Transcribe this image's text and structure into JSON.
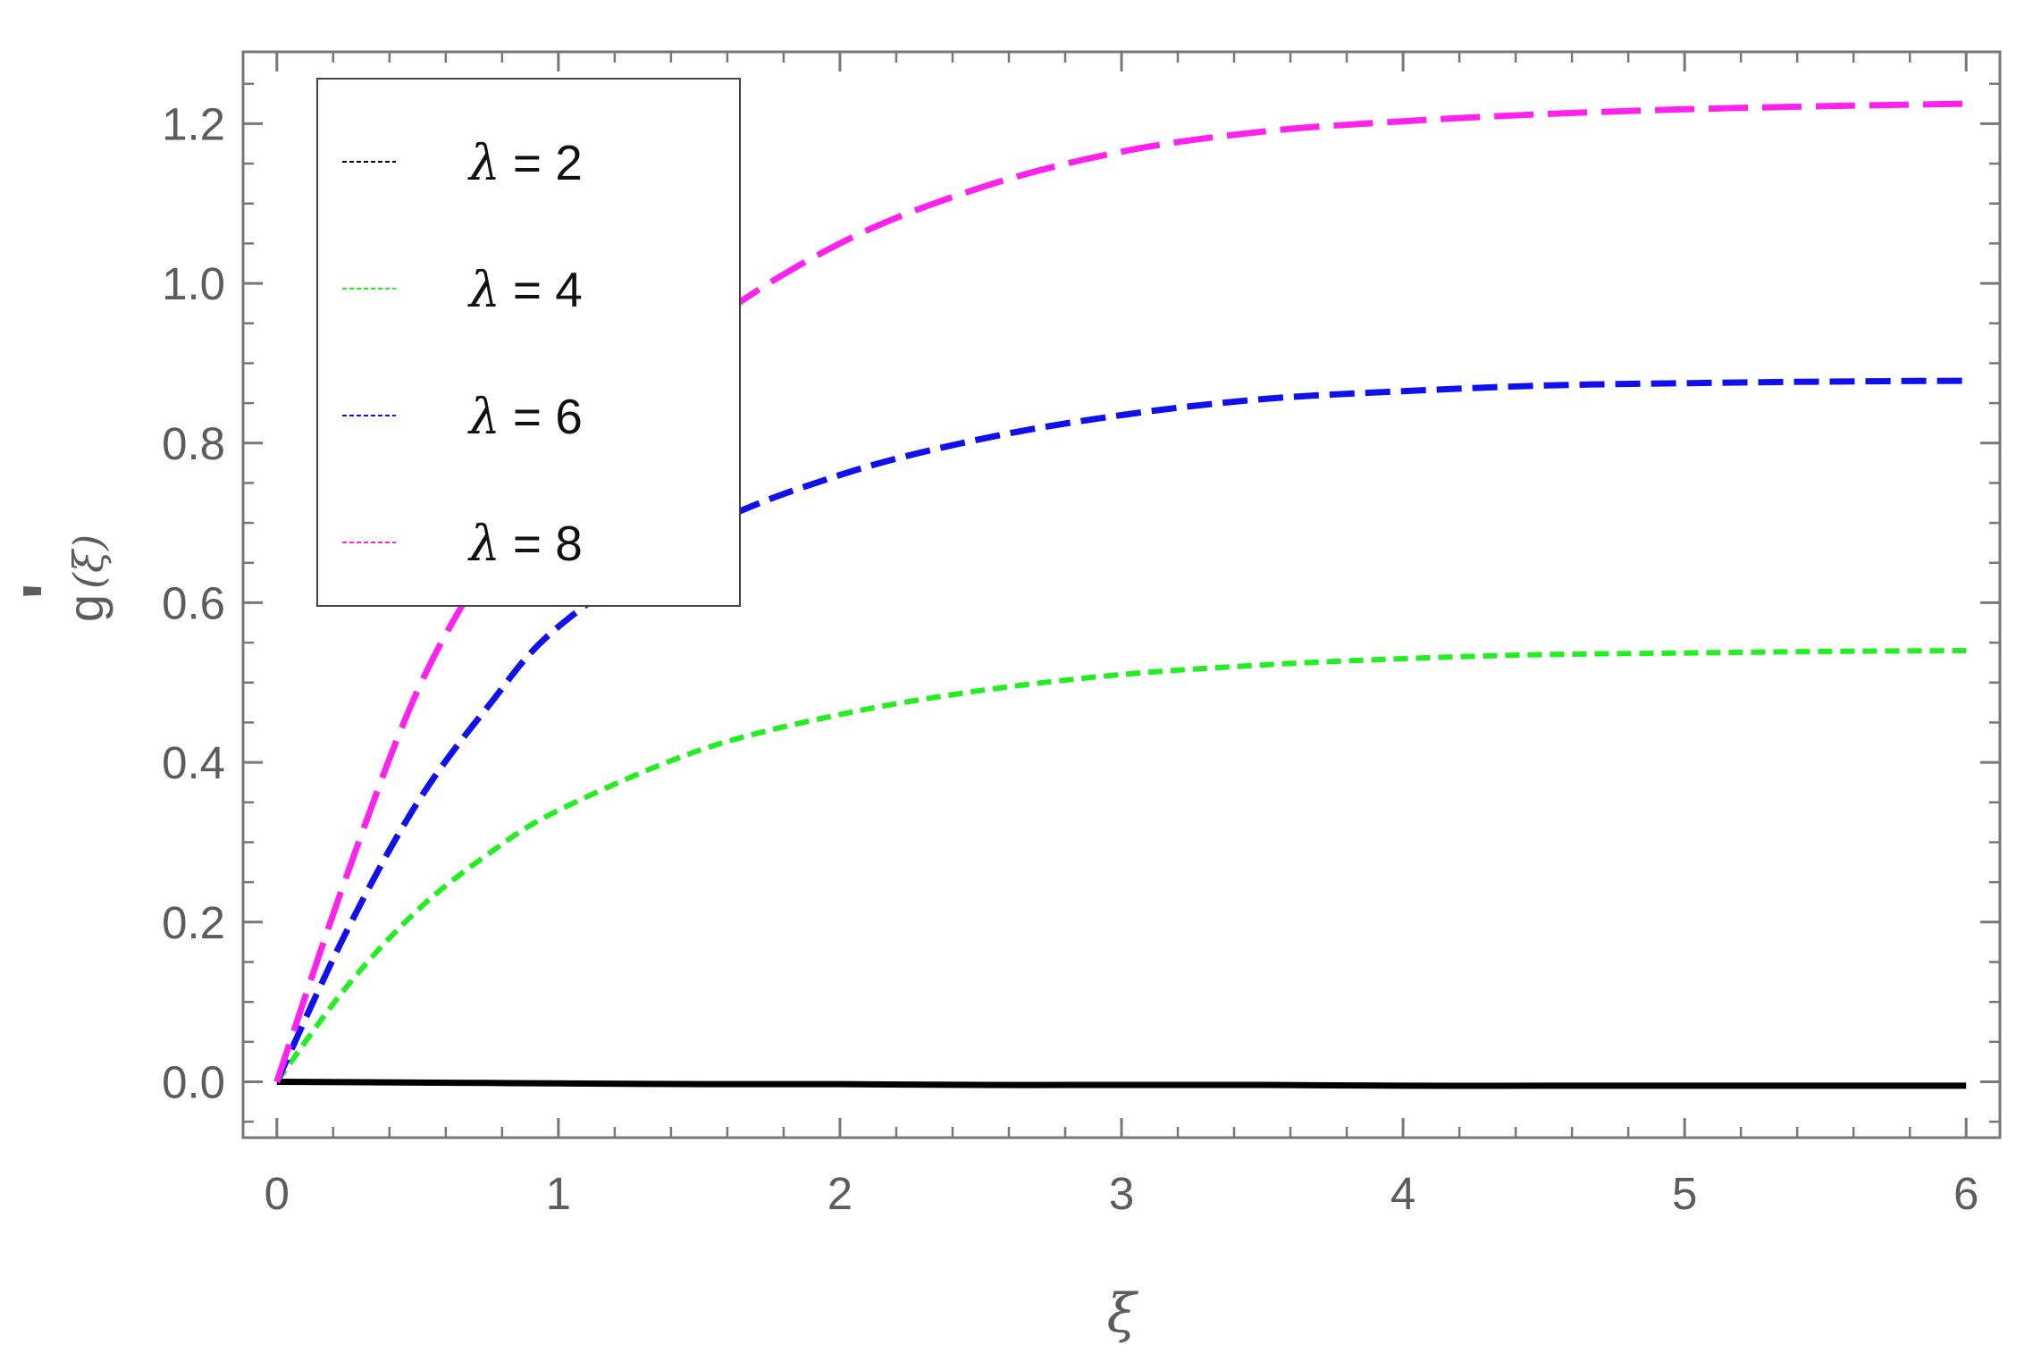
{
  "chart_data": {
    "type": "line",
    "title": "",
    "xlabel": "ξ",
    "ylabel_main": "g",
    "ylabel_prime": "'",
    "ylabel_arg": "(ξ)",
    "xlim": [
      -0.12,
      6.12
    ],
    "ylim": [
      -0.07,
      1.29
    ],
    "xticks": [
      0,
      1,
      2,
      3,
      4,
      5,
      6
    ],
    "xtick_labels": [
      "0",
      "1",
      "2",
      "3",
      "4",
      "5",
      "6"
    ],
    "yticks": [
      0.0,
      0.2,
      0.4,
      0.6,
      0.8,
      1.0,
      1.2
    ],
    "ytick_labels": [
      "0.0",
      "0.2",
      "0.4",
      "0.6",
      "0.8",
      "1.0",
      "1.2"
    ],
    "grid": false,
    "legend_position": "top-left",
    "x": [
      0,
      0.25,
      0.5,
      0.75,
      1.0,
      1.5,
      2.0,
      2.5,
      3.0,
      3.5,
      4.0,
      4.5,
      5.0,
      5.5,
      6.0
    ],
    "series": [
      {
        "name": "λ = 2",
        "legend_symbol": "λ",
        "legend_value": "= 2",
        "color": "#000000",
        "style": "solid",
        "values": [
          0,
          -0.0005,
          -0.001,
          -0.0015,
          -0.002,
          -0.003,
          -0.003,
          -0.004,
          -0.004,
          -0.004,
          -0.005,
          -0.005,
          -0.005,
          -0.005,
          -0.005
        ]
      },
      {
        "name": "λ = 4",
        "legend_symbol": "λ",
        "legend_value": "= 4",
        "color": "#22ee22",
        "style": "short-dash",
        "values": [
          0,
          0.12,
          0.215,
          0.285,
          0.34,
          0.415,
          0.46,
          0.49,
          0.51,
          0.522,
          0.53,
          0.535,
          0.537,
          0.539,
          0.54
        ]
      },
      {
        "name": "λ = 6",
        "legend_symbol": "λ",
        "legend_value": "= 6",
        "color": "#1010ee",
        "style": "medium-dash",
        "values": [
          0,
          0.19,
          0.35,
          0.47,
          0.57,
          0.69,
          0.76,
          0.805,
          0.835,
          0.855,
          0.865,
          0.872,
          0.875,
          0.877,
          0.878
        ]
      },
      {
        "name": "λ = 8",
        "legend_symbol": "λ",
        "legend_value": "= 8",
        "color": "#ff22ee",
        "style": "long-dash",
        "values": [
          0,
          0.26,
          0.49,
          0.65,
          0.78,
          0.94,
          1.05,
          1.12,
          1.165,
          1.19,
          1.203,
          1.212,
          1.218,
          1.222,
          1.225
        ]
      }
    ]
  }
}
